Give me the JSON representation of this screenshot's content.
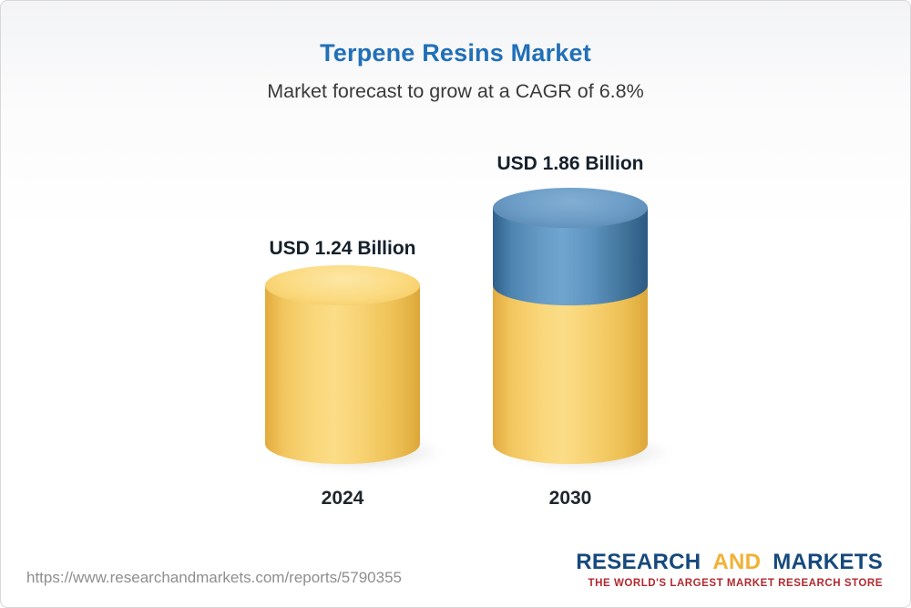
{
  "header": {
    "title": "Terpene Resins Market",
    "subtitle": "Market forecast to grow at a CAGR of 6.8%"
  },
  "chart_data": {
    "type": "bar",
    "style": "3d-cylinder",
    "title": "Terpene Resins Market",
    "subtitle": "Market forecast to grow at a CAGR of 6.8%",
    "unit": "USD Billion",
    "cagr_pct": 6.8,
    "categories": [
      "2024",
      "2030"
    ],
    "values": [
      1.24,
      1.86
    ],
    "value_labels": [
      "USD 1.24 Billion",
      "USD 1.86 Billion"
    ],
    "stacking_note": "2030 cylinder is stacked: yellow base equals 2024 value (1.24), blue top is forecast growth to 1.86",
    "colors": {
      "base_bar": "#F6CE67",
      "forecast_segment": "#5D93BF",
      "title_text": "#2170B8",
      "label_text": "#15202B"
    },
    "ylim": [
      0,
      2
    ],
    "grid": false,
    "legend": "none"
  },
  "footer": {
    "url": "https://www.researchandmarkets.com/reports/5790355",
    "logo": {
      "research": "RESEARCH",
      "and": "AND",
      "markets": "MARKETS",
      "tagline": "THE WORLD'S LARGEST MARKET RESEARCH STORE"
    }
  }
}
